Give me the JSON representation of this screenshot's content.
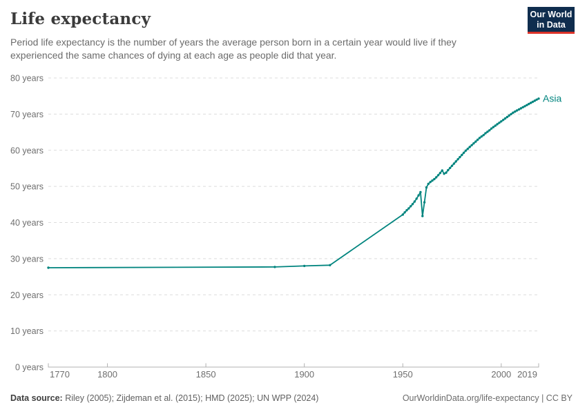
{
  "header": {
    "title": "Life expectancy",
    "subtitle_line1": "Period life expectancy is the number of years the average person born in a certain year would live if they",
    "subtitle_line2": "experienced the same chances of dying at each age as people did that year.",
    "logo": {
      "line1": "Our World",
      "line2": "in Data",
      "bg_color": "#0f2d4e",
      "accent_color": "#dc3228"
    }
  },
  "chart_data": {
    "type": "line",
    "title": "Life expectancy",
    "xlabel": "",
    "ylabel": "",
    "xlim": [
      1770,
      2019
    ],
    "ylim": [
      0,
      80
    ],
    "grid": "horizontal-dashed",
    "grid_color": "#dcdcdc",
    "axis_color": "#b0b0b0",
    "tick_label_color": "#6e6e6e",
    "x_ticks": [
      1770,
      1800,
      1850,
      1900,
      1950,
      2000,
      2019
    ],
    "x_tick_labels": [
      "1770",
      "1800",
      "1850",
      "1900",
      "1950",
      "2000",
      "2019"
    ],
    "y_ticks": [
      0,
      10,
      20,
      30,
      40,
      50,
      60,
      70,
      80
    ],
    "y_tick_labels": [
      "0 years",
      "10 years",
      "20 years",
      "30 years",
      "40 years",
      "50 years",
      "60 years",
      "70 years",
      "80 years"
    ],
    "legend_position": "end-of-line-label",
    "series": [
      {
        "name": "Asia",
        "color": "#00847E",
        "points": [
          [
            1770,
            27.5
          ],
          [
            1885,
            27.7
          ],
          [
            1900,
            28.0
          ],
          [
            1913,
            28.2
          ],
          [
            1950,
            42.2
          ],
          [
            1951,
            42.8
          ],
          [
            1952,
            43.4
          ],
          [
            1953,
            43.9
          ],
          [
            1954,
            44.5
          ],
          [
            1955,
            45.1
          ],
          [
            1956,
            45.8
          ],
          [
            1957,
            46.6
          ],
          [
            1958,
            47.5
          ],
          [
            1959,
            48.4
          ],
          [
            1960,
            41.8
          ],
          [
            1961,
            45.6
          ],
          [
            1962,
            49.7
          ],
          [
            1963,
            50.7
          ],
          [
            1964,
            51.2
          ],
          [
            1965,
            51.6
          ],
          [
            1966,
            52.0
          ],
          [
            1967,
            52.5
          ],
          [
            1968,
            53.1
          ],
          [
            1969,
            53.7
          ],
          [
            1970,
            54.4
          ],
          [
            1971,
            53.5
          ],
          [
            1972,
            53.8
          ],
          [
            1973,
            54.5
          ],
          [
            1974,
            55.1
          ],
          [
            1975,
            55.7
          ],
          [
            1976,
            56.3
          ],
          [
            1977,
            56.9
          ],
          [
            1978,
            57.5
          ],
          [
            1979,
            58.1
          ],
          [
            1980,
            58.7
          ],
          [
            1981,
            59.3
          ],
          [
            1982,
            59.9
          ],
          [
            1983,
            60.4
          ],
          [
            1984,
            60.9
          ],
          [
            1985,
            61.4
          ],
          [
            1986,
            61.9
          ],
          [
            1987,
            62.4
          ],
          [
            1988,
            62.9
          ],
          [
            1989,
            63.4
          ],
          [
            1990,
            63.8
          ],
          [
            1991,
            64.2
          ],
          [
            1992,
            64.7
          ],
          [
            1993,
            65.1
          ],
          [
            1994,
            65.5
          ],
          [
            1995,
            66.0
          ],
          [
            1996,
            66.4
          ],
          [
            1997,
            66.8
          ],
          [
            1998,
            67.2
          ],
          [
            1999,
            67.6
          ],
          [
            2000,
            68.0
          ],
          [
            2001,
            68.4
          ],
          [
            2002,
            68.8
          ],
          [
            2003,
            69.2
          ],
          [
            2004,
            69.6
          ],
          [
            2005,
            70.0
          ],
          [
            2006,
            70.4
          ],
          [
            2007,
            70.7
          ],
          [
            2008,
            71.0
          ],
          [
            2009,
            71.3
          ],
          [
            2010,
            71.6
          ],
          [
            2011,
            71.9
          ],
          [
            2012,
            72.2
          ],
          [
            2013,
            72.5
          ],
          [
            2014,
            72.8
          ],
          [
            2015,
            73.1
          ],
          [
            2016,
            73.4
          ],
          [
            2017,
            73.7
          ],
          [
            2018,
            74.0
          ],
          [
            2019,
            74.3
          ]
        ]
      }
    ]
  },
  "footer": {
    "source_label": "Data source:",
    "source_text": " Riley (2005); Zijdeman et al. (2015); HMD (2025); UN WPP (2024)",
    "link_text": "OurWorldinData.org/life-expectancy | CC BY"
  }
}
